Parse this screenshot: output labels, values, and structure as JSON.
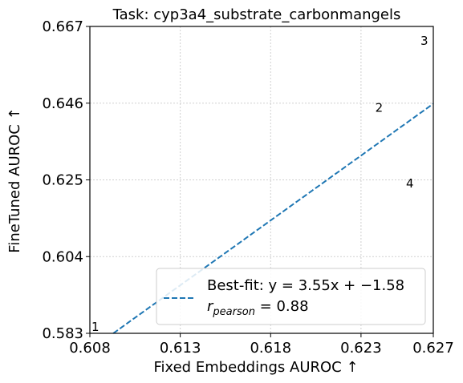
{
  "chart_data": {
    "type": "scatter",
    "title": "Task: cyp3a4_substrate_carbonmangels",
    "xlabel": "Fixed Embeddings AUROC ↑",
    "ylabel": "FineTuned AUROC ↑",
    "xlim": [
      0.608,
      0.627
    ],
    "ylim": [
      0.583,
      0.667
    ],
    "xticks": [
      "0.608",
      "0.613",
      "0.618",
      "0.623",
      "0.627"
    ],
    "xtick_values": [
      0.608,
      0.613,
      0.618,
      0.623,
      0.627
    ],
    "yticks": [
      "0.583",
      "0.604",
      "0.625",
      "0.646",
      "0.667"
    ],
    "ytick_values": [
      0.583,
      0.604,
      0.625,
      0.646,
      0.667
    ],
    "grid": true,
    "points": [
      {
        "label": "1",
        "x": 0.6083,
        "y": 0.5848
      },
      {
        "label": "2",
        "x": 0.624,
        "y": 0.6447
      },
      {
        "label": "3",
        "x": 0.6265,
        "y": 0.663
      },
      {
        "label": "4",
        "x": 0.6257,
        "y": 0.624
      }
    ],
    "fit_line": {
      "slope": 3.55,
      "intercept": -1.58,
      "color": "#1f77b4",
      "style": "dashed"
    },
    "legend": {
      "position": "lower-right",
      "line1": "Best-fit: y = 3.55x + −1.58",
      "line2": "r",
      "line2_sub": "pearson",
      "line2_rest": " = 0.88"
    }
  }
}
